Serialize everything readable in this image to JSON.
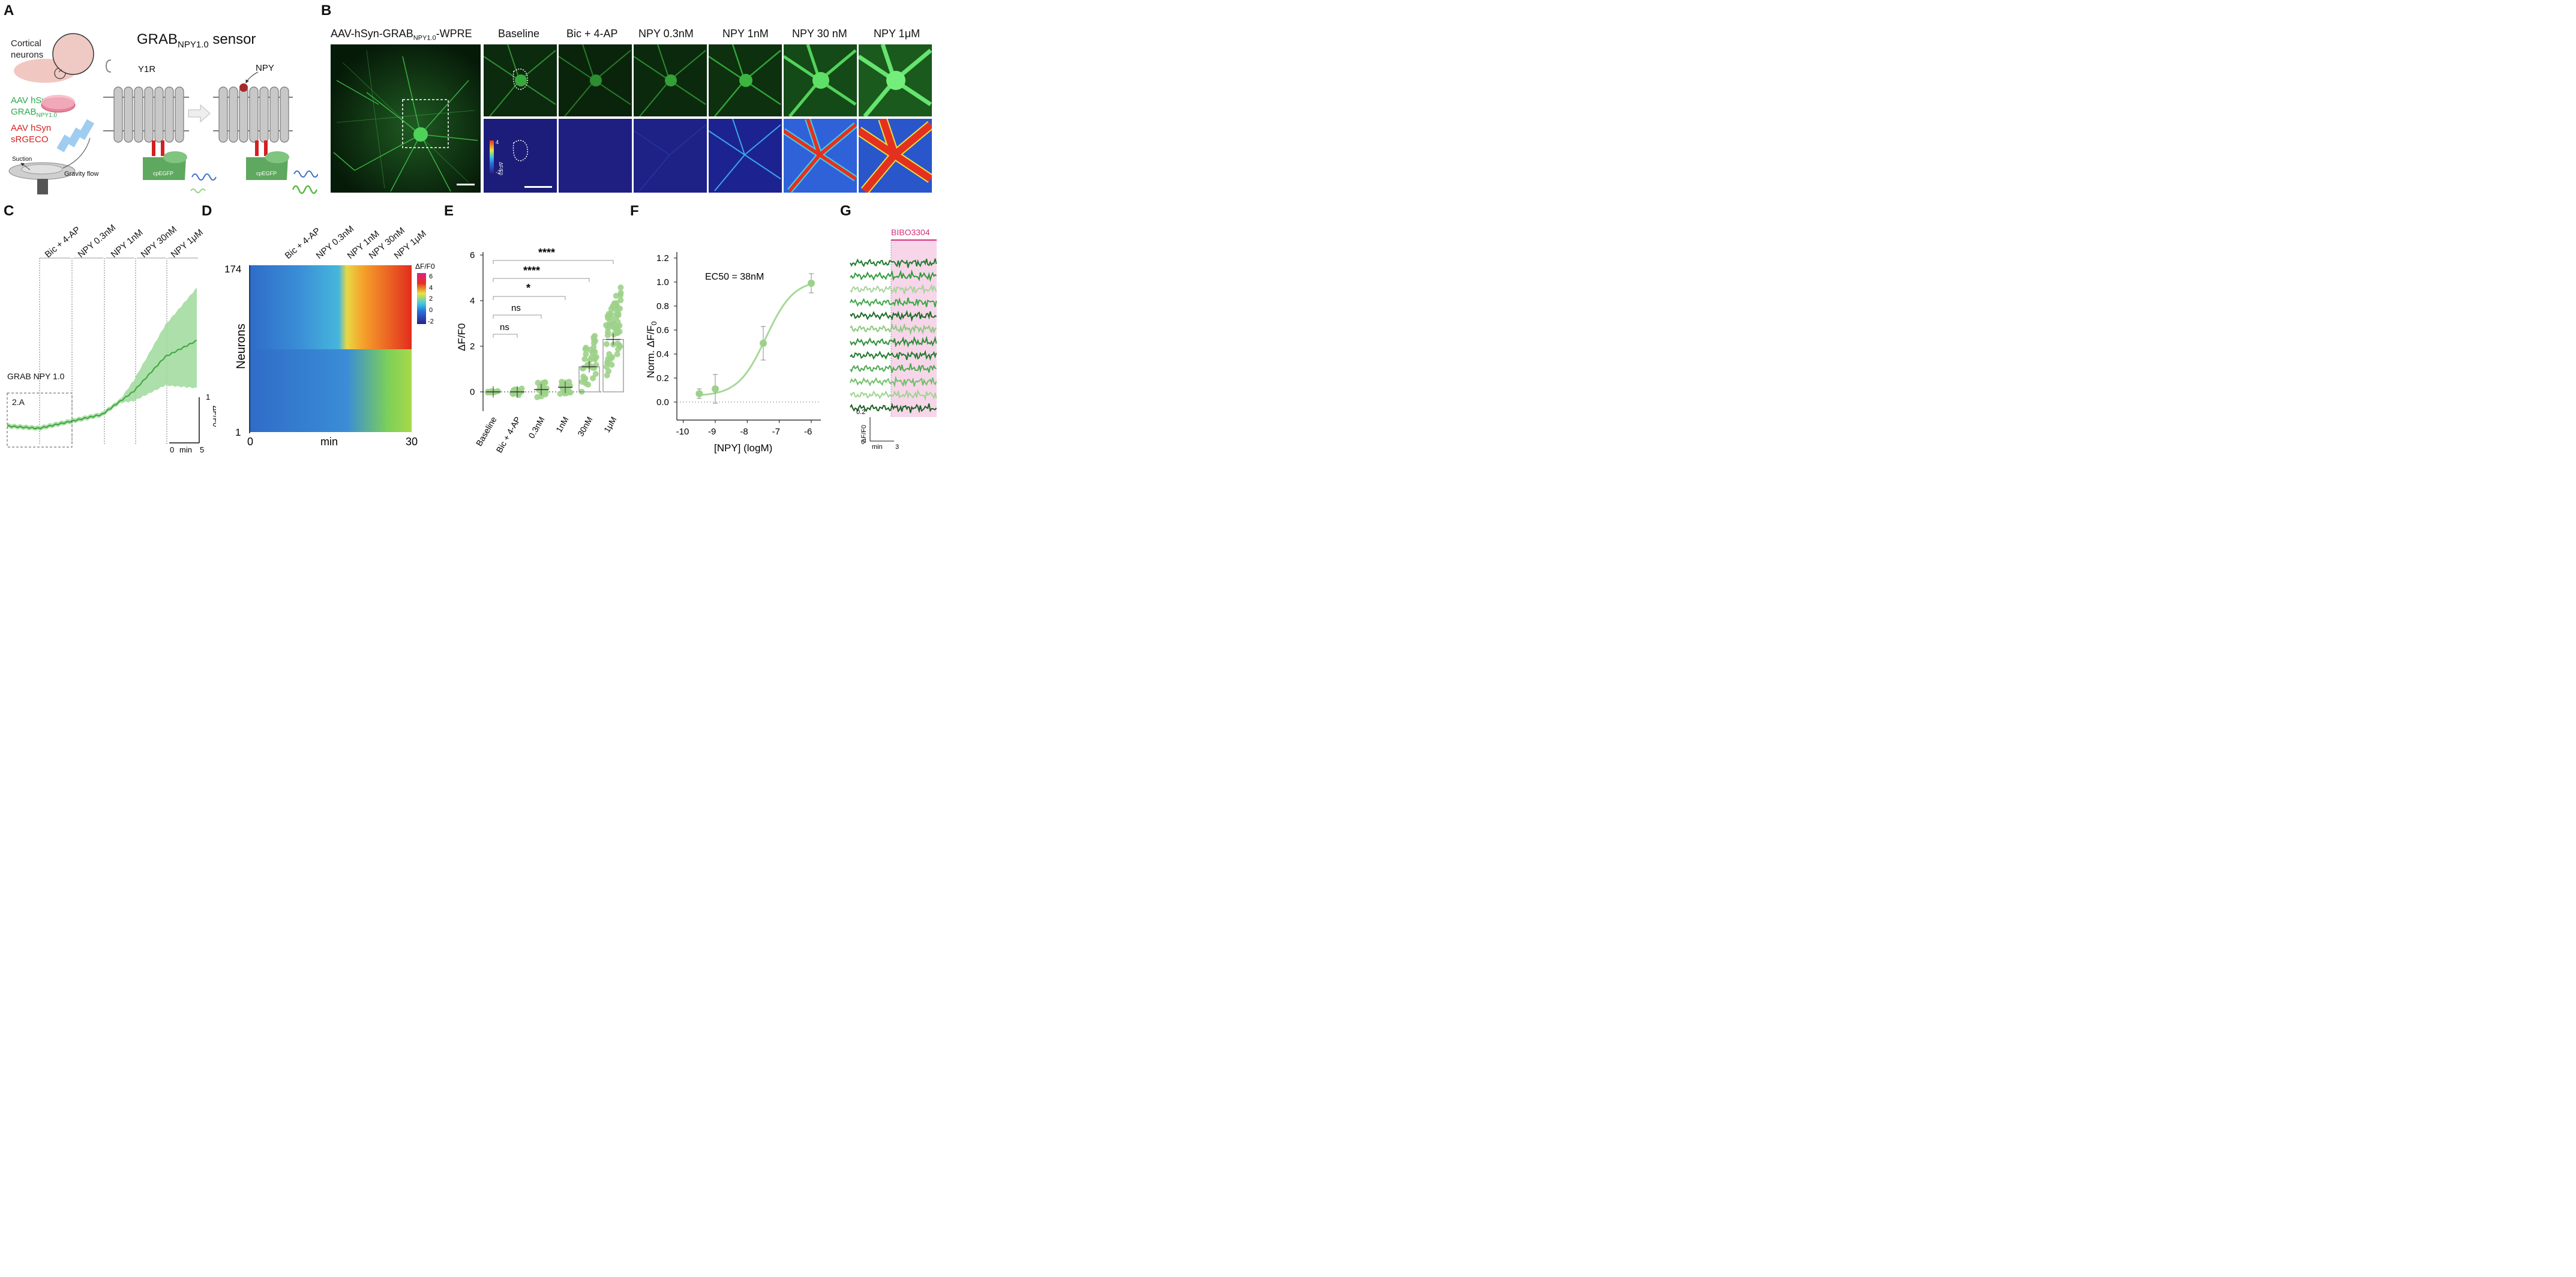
{
  "colors": {
    "green": "#3a9a3a",
    "lightgreen": "#8fd37f",
    "red": "#d42020",
    "pink": "#f7d6e8",
    "magenta": "#d1307a",
    "navy": "#1c1d7a"
  },
  "panelA": {
    "label": "A",
    "title": "GRAB",
    "title_sub": "NPY1.0",
    "title_rest": " sensor",
    "cortical": "Cortical",
    "neurons": "neurons",
    "aav1_l1": "AAV hSyn",
    "aav1_l2": "GRAB",
    "aav1_sub": "NPY1.0",
    "aav2_l1": "AAV hSyn",
    "aav2_l2": "sRGECO",
    "suction": "Suction",
    "gravity": "Gravity flow",
    "y1r": "Y1R",
    "npy": "NPY",
    "cpegfp1": "cpEGFP",
    "cpegfp2": "cpEGFP"
  },
  "panelB": {
    "label": "B",
    "virus_pre": "AAV-hSyn-GRAB",
    "virus_sub": "NPY1.0",
    "virus_post": "-WPRE",
    "conditions": [
      "Baseline",
      "Bic + 4-AP",
      "NPY 0.3nM",
      "NPY 1nM",
      "NPY 30 nM",
      "NPY 1μM"
    ],
    "cbar_max": "4",
    "cbar_min": "-2",
    "cbar_label": "ΔF/F0"
  },
  "panelC": {
    "label": "C",
    "conditions": [
      "Bic + 4-AP",
      "NPY 0.3nM",
      "NPY 1nM",
      "NPY 30nM",
      "NPY 1μM"
    ],
    "trace_label": "GRAB NPY 1.0",
    "box_label": "2.A",
    "scale_y": "1",
    "scale_ylabel": "ΔF/F0",
    "scale_x0": "0",
    "scale_xlabel": "min",
    "scale_x1": "5"
  },
  "panelD": {
    "label": "D",
    "conditions": [
      "Bic + 4-AP",
      "NPY 0.3nM",
      "NPY 1nM",
      "NPY 30nM",
      "NPY 1μM"
    ],
    "ylabel": "Neurons",
    "ytop": "174",
    "ybot": "1",
    "x0": "0",
    "xlabel": "min",
    "x1": "30",
    "cbar_title": "ΔF/F0",
    "cbar_ticks": [
      "6",
      "4",
      "2",
      "0",
      "-2"
    ]
  },
  "panelE": {
    "label": "E",
    "ylabel": "ΔF/F0",
    "yticks": [
      "6",
      "4",
      "2",
      "0"
    ],
    "categories": [
      "Baseline",
      "Bic + 4-AP",
      "0.3nM",
      "1nM",
      "30nM",
      "1μM"
    ],
    "sig": [
      "ns",
      "ns",
      "*",
      "****",
      "****"
    ]
  },
  "panelF": {
    "label": "F",
    "ylabel": "Norm. ΔF/F",
    "ylabel_sub": "0",
    "xlabel": "[NPY] (logM)",
    "annotation": "EC50 = 38nM",
    "yticks": [
      "1.2",
      "1.0",
      "0.8",
      "0.6",
      "0.4",
      "0.2",
      "0.0"
    ],
    "xticks": [
      "-10",
      "-9",
      "-8",
      "-7",
      "-6"
    ]
  },
  "panelG": {
    "label": "G",
    "drug": "BIBO3304",
    "scale_y": "0.2",
    "scale_ylabel": "ΔF/F0",
    "scale_x0": "0",
    "scale_xlabel": "min",
    "scale_x1": "3"
  },
  "chart_data": [
    {
      "type": "line",
      "panel": "C",
      "x_unit": "min",
      "series": [
        {
          "x": [
            0,
            5,
            10,
            15,
            20,
            25,
            30
          ],
          "y": [
            0.0,
            -0.05,
            0.1,
            0.25,
            0.75,
            1.5,
            1.85
          ]
        }
      ]
    },
    {
      "type": "heatmap",
      "panel": "D",
      "ylabel": "Neurons",
      "xlabel": "min",
      "xlim": [
        0,
        30
      ],
      "ylim": [
        1,
        174
      ],
      "colorbar": [
        -2,
        6
      ]
    },
    {
      "type": "scatter",
      "panel": "E",
      "categories": [
        "Baseline",
        "Bic + 4-AP",
        "0.3nM",
        "1nM",
        "30nM",
        "1μM"
      ],
      "means": [
        0.0,
        0.0,
        0.1,
        0.2,
        1.1,
        2.3
      ],
      "ylabel": "ΔF/F0",
      "ylim": [
        -1,
        6
      ]
    },
    {
      "type": "scatter",
      "panel": "F",
      "x": [
        -9.5,
        -9.0,
        -7.5,
        -6.0
      ],
      "y": [
        0.07,
        0.11,
        0.49,
        0.99
      ],
      "err": [
        0.04,
        0.12,
        0.14,
        0.08
      ],
      "xlabel": "[NPY] (logM)",
      "xlim": [
        -10,
        -6
      ],
      "ylim": [
        0,
        1.2
      ]
    }
  ]
}
